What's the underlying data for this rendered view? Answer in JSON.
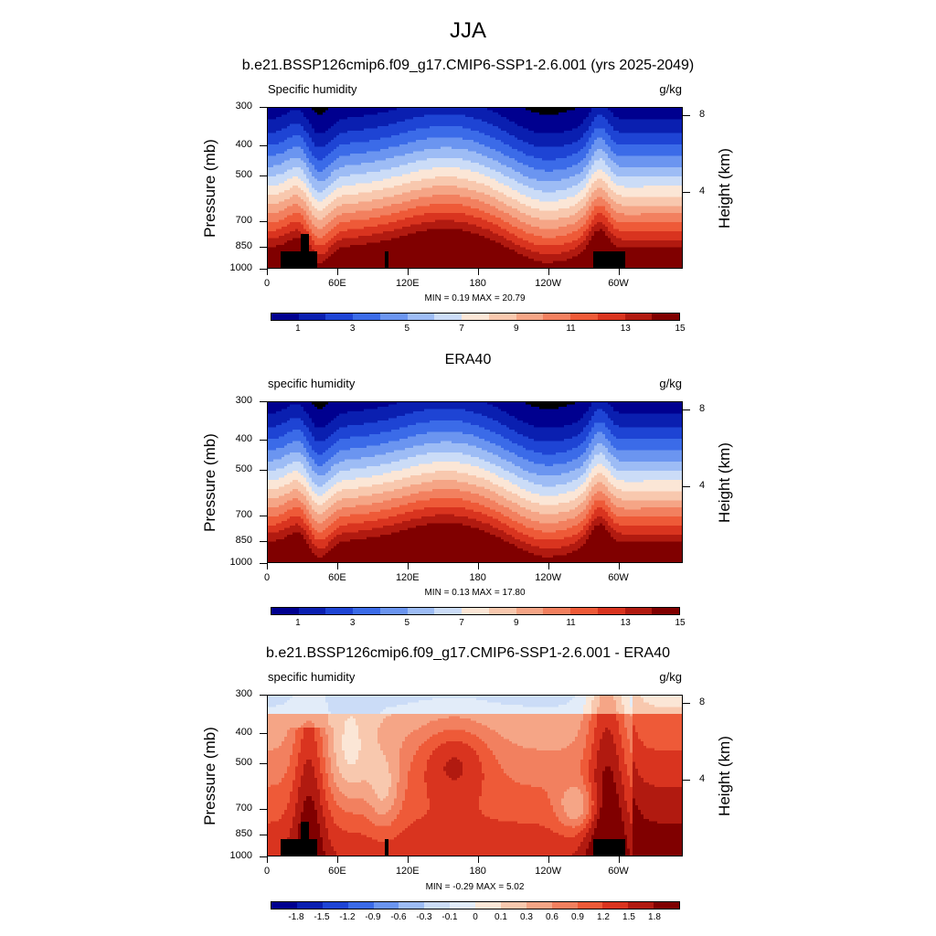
{
  "figure_title": "JJA",
  "panels": [
    {
      "title": "b.e21.BSSP126cmip6.f09_g17.CMIP6-SSP1-2.6.001 (yrs 2025-2049)",
      "left_label": "Specific humidity",
      "right_label": "g/kg",
      "ylabel": "Pressure (mb)",
      "y2label": "Height (km)",
      "minmax": "MIN =   0.19  MAX =  20.79",
      "colorbar_ticks": [
        "1",
        "3",
        "5",
        "7",
        "9",
        "11",
        "13",
        "15"
      ]
    },
    {
      "title": "ERA40",
      "left_label": "specific humidity",
      "right_label": "g/kg",
      "ylabel": "Pressure (mb)",
      "y2label": "Height (km)",
      "minmax": "MIN =   0.13  MAX =  17.80",
      "colorbar_ticks": [
        "1",
        "3",
        "5",
        "7",
        "9",
        "11",
        "13",
        "15"
      ]
    },
    {
      "title": "b.e21.BSSP126cmip6.f09_g17.CMIP6-SSP1-2.6.001 - ERA40",
      "left_label": "specific humidity",
      "right_label": "g/kg",
      "ylabel": "Pressure (mb)",
      "y2label": "Height (km)",
      "minmax": "MIN =  -0.29  MAX =   5.02",
      "colorbar_ticks": [
        "-1.8",
        "-1.5",
        "-1.2",
        "-0.9",
        "-0.6",
        "-0.3",
        "-0.1",
        "0",
        "0.1",
        "0.3",
        "0.6",
        "0.9",
        "1.2",
        "1.5",
        "1.8"
      ]
    }
  ],
  "axes": {
    "x_ticks": [
      "0",
      "60E",
      "120E",
      "180",
      "120W",
      "60W"
    ],
    "x_tick_lon": [
      0,
      60,
      120,
      180,
      240,
      300
    ],
    "x_range": [
      0,
      355
    ],
    "y_ticks": [
      "300",
      "400",
      "500",
      "700",
      "850",
      "1000"
    ],
    "y_tick_p": [
      300,
      400,
      500,
      700,
      850,
      1000
    ],
    "y2_ticks": [
      "8",
      "4"
    ],
    "y2_tick_km": [
      8,
      4
    ]
  },
  "colors": {
    "abs_palette": [
      "#00008f",
      "#0a1fb0",
      "#1e44d4",
      "#3b6be8",
      "#6b95f0",
      "#9dbcf5",
      "#cbdcf7",
      "#fbe6d6",
      "#f8c8ae",
      "#f5a586",
      "#f2805f",
      "#ee5a38",
      "#d9341f",
      "#b11a10",
      "#800000"
    ],
    "diff_palette": [
      "#00008f",
      "#0a1fb0",
      "#1e44d4",
      "#3b6be8",
      "#6b95f0",
      "#9dbcf5",
      "#cbdcf7",
      "#e2ecf9",
      "#fbe6d6",
      "#f8c8ae",
      "#f5a586",
      "#f2805f",
      "#ee5a38",
      "#d9341f",
      "#b11a10",
      "#800000"
    ]
  },
  "chart_data": [
    {
      "type": "heatmap",
      "title": "b.e21.BSSP126cmip6.f09_g17.CMIP6-SSP1-2.6.001 (yrs 2025-2049)",
      "variable": "Specific humidity",
      "units": "g/kg",
      "xlabel": "",
      "ylabel": "Pressure (mb)",
      "y2label": "Height (km)",
      "x_ticks": [
        "0",
        "60E",
        "120E",
        "180",
        "120W",
        "60W"
      ],
      "y_ticks": [
        300,
        400,
        500,
        700,
        850,
        1000
      ],
      "y_log_scale": true,
      "min": 0.19,
      "max": 20.79,
      "contour_levels": [
        1,
        2,
        3,
        4,
        5,
        6,
        7,
        8,
        9,
        10,
        11,
        12,
        13,
        14,
        15
      ]
    },
    {
      "type": "heatmap",
      "title": "ERA40",
      "variable": "specific humidity",
      "units": "g/kg",
      "xlabel": "",
      "ylabel": "Pressure (mb)",
      "y2label": "Height (km)",
      "x_ticks": [
        "0",
        "60E",
        "120E",
        "180",
        "120W",
        "60W"
      ],
      "y_ticks": [
        300,
        400,
        500,
        700,
        850,
        1000
      ],
      "y_log_scale": true,
      "min": 0.13,
      "max": 17.8,
      "contour_levels": [
        1,
        2,
        3,
        4,
        5,
        6,
        7,
        8,
        9,
        10,
        11,
        12,
        13,
        14,
        15
      ]
    },
    {
      "type": "heatmap",
      "title": "b.e21.BSSP126cmip6.f09_g17.CMIP6-SSP1-2.6.001 - ERA40",
      "variable": "specific humidity",
      "units": "g/kg",
      "xlabel": "",
      "ylabel": "Pressure (mb)",
      "y2label": "Height (km)",
      "x_ticks": [
        "0",
        "60E",
        "120E",
        "180",
        "120W",
        "60W"
      ],
      "y_ticks": [
        300,
        400,
        500,
        700,
        850,
        1000
      ],
      "y_log_scale": true,
      "min": -0.29,
      "max": 5.02,
      "contour_levels": [
        -1.8,
        -1.5,
        -1.2,
        -0.9,
        -0.6,
        -0.3,
        -0.1,
        0,
        0.1,
        0.3,
        0.6,
        0.9,
        1.2,
        1.5,
        1.8
      ]
    }
  ]
}
